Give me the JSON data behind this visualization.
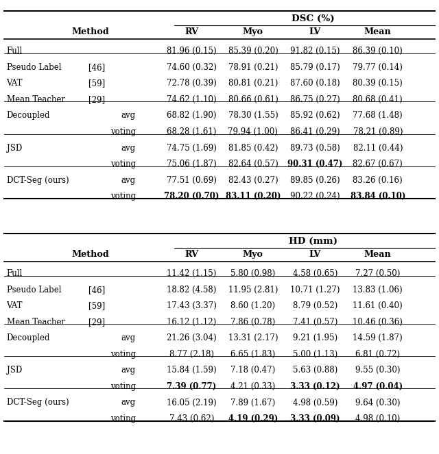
{
  "table1_title": "DSC (%)",
  "table2_title": "HD (mm)",
  "col_headers": [
    "RV",
    "Myo",
    "LV",
    "Mean"
  ],
  "table1_rows": [
    {
      "method": "Full",
      "ref": "",
      "sub": "",
      "vals": [
        "81.96 (0.15)",
        "85.39 (0.20)",
        "91.82 (0.15)",
        "86.39 (0.10)"
      ],
      "bold": [
        false,
        false,
        false,
        false
      ]
    },
    {
      "method": "Pseudo Label",
      "ref": "[46]",
      "sub": "",
      "vals": [
        "74.60 (0.32)",
        "78.91 (0.21)",
        "85.79 (0.17)",
        "79.77 (0.14)"
      ],
      "bold": [
        false,
        false,
        false,
        false
      ]
    },
    {
      "method": "VAT",
      "ref": "[59]",
      "sub": "",
      "vals": [
        "72.78 (0.39)",
        "80.81 (0.21)",
        "87.60 (0.18)",
        "80.39 (0.15)"
      ],
      "bold": [
        false,
        false,
        false,
        false
      ]
    },
    {
      "method": "Mean Teacher",
      "ref": "[29]",
      "sub": "",
      "vals": [
        "74.62 (1.10)",
        "80.66 (0.61)",
        "86.75 (0.27)",
        "80.68 (0.41)"
      ],
      "bold": [
        false,
        false,
        false,
        false
      ]
    },
    {
      "method": "Decoupled",
      "ref": "",
      "sub": "avg",
      "vals": [
        "68.82 (1.90)",
        "78.30 (1.55)",
        "85.92 (0.62)",
        "77.68 (1.48)"
      ],
      "bold": [
        false,
        false,
        false,
        false
      ]
    },
    {
      "method": "",
      "ref": "",
      "sub": "voting",
      "vals": [
        "68.28 (1.61)",
        "79.94 (1.00)",
        "86.41 (0.29)",
        "78.21 (0.89)"
      ],
      "bold": [
        false,
        false,
        false,
        false
      ]
    },
    {
      "method": "JSD",
      "ref": "",
      "sub": "avg",
      "vals": [
        "74.75 (1.69)",
        "81.85 (0.42)",
        "89.73 (0.58)",
        "82.11 (0.44)"
      ],
      "bold": [
        false,
        false,
        false,
        false
      ]
    },
    {
      "method": "",
      "ref": "",
      "sub": "voting",
      "vals": [
        "75.06 (1.87)",
        "82.64 (0.57)",
        "90.31 (0.47)",
        "82.67 (0.67)"
      ],
      "bold": [
        false,
        false,
        true,
        false
      ]
    },
    {
      "method": "DCT-Seg (ours)",
      "ref": "",
      "sub": "avg",
      "vals": [
        "77.51 (0.69)",
        "82.43 (0.27)",
        "89.85 (0.26)",
        "83.26 (0.16)"
      ],
      "bold": [
        false,
        false,
        false,
        false
      ]
    },
    {
      "method": "",
      "ref": "",
      "sub": "voting",
      "vals": [
        "78.20 (0.70)",
        "83.11 (0.20)",
        "90.22 (0.24)",
        "83.84 (0.10)"
      ],
      "bold": [
        true,
        true,
        false,
        true
      ]
    }
  ],
  "table2_rows": [
    {
      "method": "Full",
      "ref": "",
      "sub": "",
      "vals": [
        "11.42 (1.15)",
        "5.80 (0.98)",
        "4.58 (0.65)",
        "7.27 (0.50)"
      ],
      "bold": [
        false,
        false,
        false,
        false
      ]
    },
    {
      "method": "Pseudo Label",
      "ref": "[46]",
      "sub": "",
      "vals": [
        "18.82 (4.58)",
        "11.95 (2.81)",
        "10.71 (1.27)",
        "13.83 (1.06)"
      ],
      "bold": [
        false,
        false,
        false,
        false
      ]
    },
    {
      "method": "VAT",
      "ref": "[59]",
      "sub": "",
      "vals": [
        "17.43 (3.37)",
        "8.60 (1.20)",
        "8.79 (0.52)",
        "11.61 (0.40)"
      ],
      "bold": [
        false,
        false,
        false,
        false
      ]
    },
    {
      "method": "Mean Teacher",
      "ref": "[29]",
      "sub": "",
      "vals": [
        "16.12 (1.12)",
        "7.86 (0.78)",
        "7.41 (0.57)",
        "10.46 (0.36)"
      ],
      "bold": [
        false,
        false,
        false,
        false
      ]
    },
    {
      "method": "Decoupled",
      "ref": "",
      "sub": "avg",
      "vals": [
        "21.26 (3.04)",
        "13.31 (2.17)",
        "9.21 (1.95)",
        "14.59 (1.87)"
      ],
      "bold": [
        false,
        false,
        false,
        false
      ]
    },
    {
      "method": "",
      "ref": "",
      "sub": "voting",
      "vals": [
        "8.77 (2.18)",
        "6.65 (1.83)",
        "5.00 (1.13)",
        "6.81 (0.72)"
      ],
      "bold": [
        false,
        false,
        false,
        false
      ]
    },
    {
      "method": "JSD",
      "ref": "",
      "sub": "avg",
      "vals": [
        "15.84 (1.59)",
        "7.18 (0.47)",
        "5.63 (0.88)",
        "9.55 (0.30)"
      ],
      "bold": [
        false,
        false,
        false,
        false
      ]
    },
    {
      "method": "",
      "ref": "",
      "sub": "voting",
      "vals": [
        "7.39 (0.77)",
        "4.21 (0.33)",
        "3.33 (0.12)",
        "4.97 (0.04)"
      ],
      "bold": [
        true,
        false,
        true,
        true
      ]
    },
    {
      "method": "DCT-Seg (ours)",
      "ref": "",
      "sub": "avg",
      "vals": [
        "16.05 (2.19)",
        "7.89 (1.67)",
        "4.98 (0.59)",
        "9.64 (0.30)"
      ],
      "bold": [
        false,
        false,
        false,
        false
      ]
    },
    {
      "method": "",
      "ref": "",
      "sub": "voting",
      "vals": [
        "7.43 (0.62)",
        "4.19 (0.29)",
        "3.33 (0.09)",
        "4.98 (0.10)"
      ],
      "bold": [
        false,
        true,
        true,
        false
      ]
    }
  ]
}
